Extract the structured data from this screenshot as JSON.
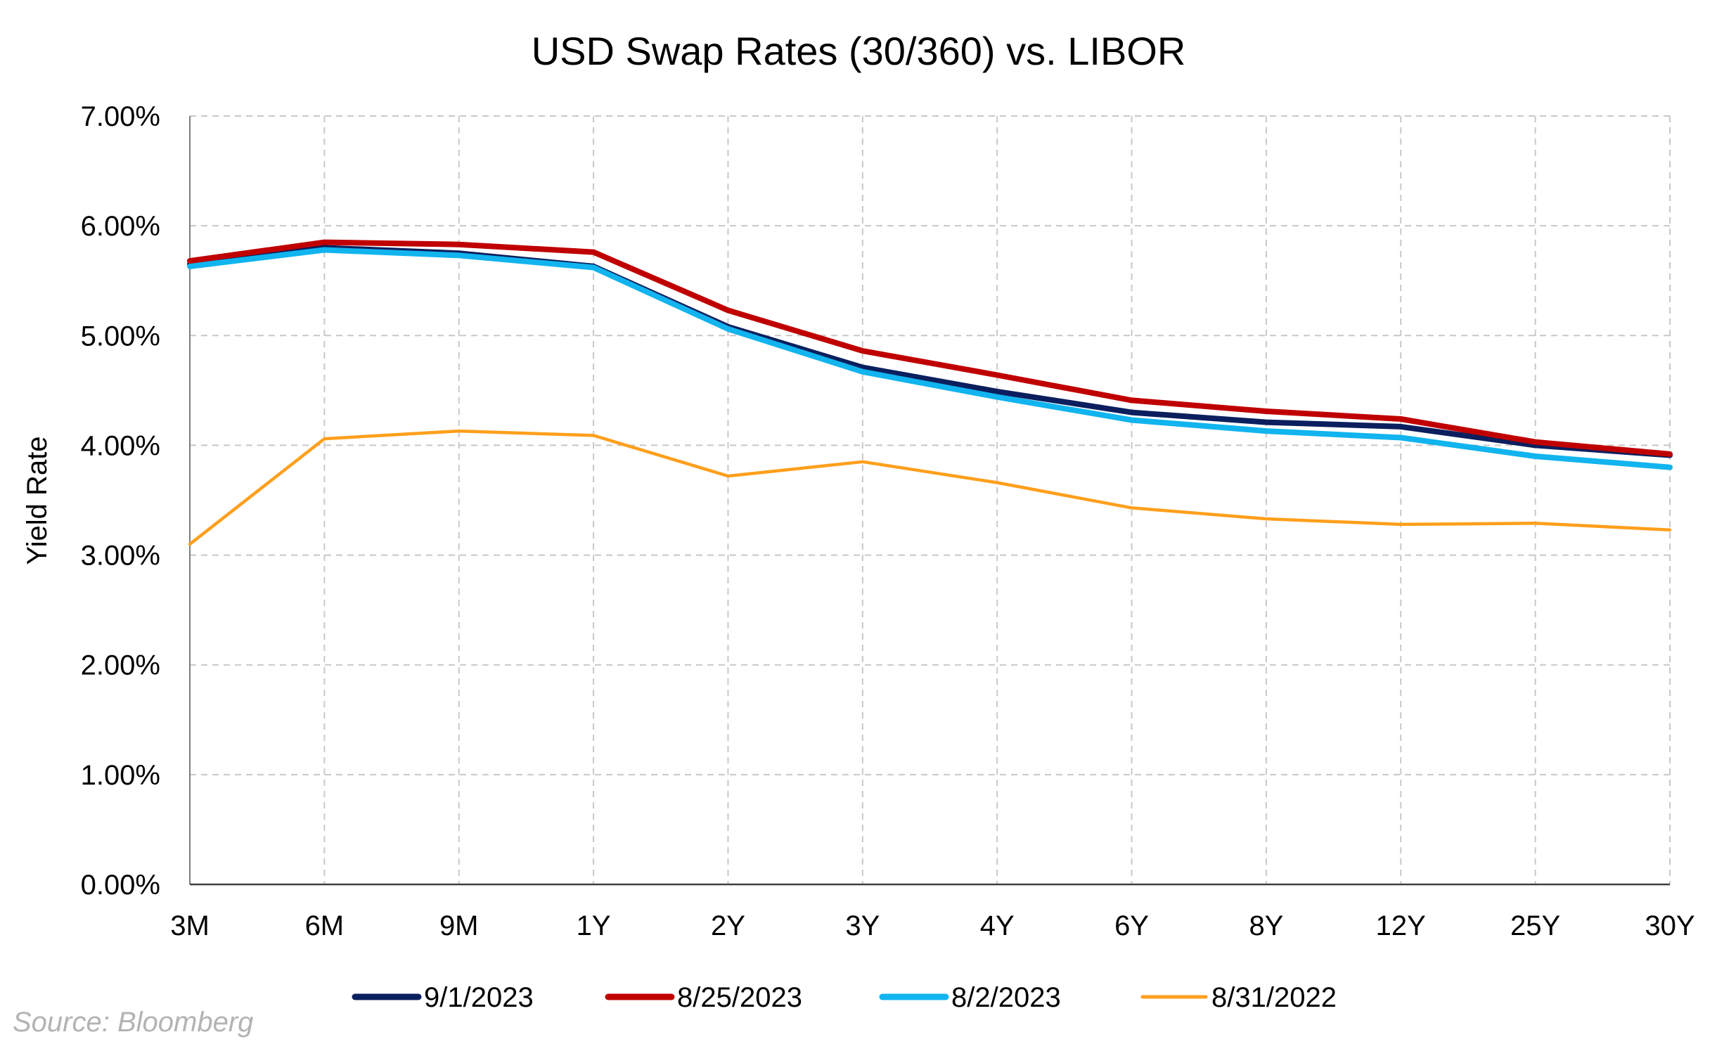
{
  "chart_data": {
    "type": "line",
    "title": "USD Swap Rates (30/360) vs. LIBOR",
    "xlabel": "",
    "ylabel": "Yield Rate",
    "categories": [
      "3M",
      "6M",
      "9M",
      "1Y",
      "2Y",
      "3Y",
      "4Y",
      "6Y",
      "8Y",
      "12Y",
      "25Y",
      "30Y"
    ],
    "ylim": [
      0,
      7
    ],
    "yticks": [
      {
        "value": 0,
        "label": "0.00%"
      },
      {
        "value": 1,
        "label": "1.00%"
      },
      {
        "value": 2,
        "label": "2.00%"
      },
      {
        "value": 3,
        "label": "3.00%"
      },
      {
        "value": 4,
        "label": "4.00%"
      },
      {
        "value": 5,
        "label": "5.00%"
      },
      {
        "value": 6,
        "label": "6.00%"
      },
      {
        "value": 7,
        "label": "7.00%"
      }
    ],
    "grid": true,
    "legend_position": "bottom",
    "series": [
      {
        "name": "8/31/2022",
        "color": "#ff9f1c",
        "values": [
          3.1,
          4.06,
          4.13,
          4.09,
          3.72,
          3.85,
          3.66,
          3.43,
          3.33,
          3.28,
          3.29,
          3.23
        ]
      },
      {
        "name": "9/1/2023",
        "color": "#0b1f5e",
        "values": [
          5.65,
          5.8,
          5.75,
          5.63,
          5.08,
          4.71,
          4.49,
          4.3,
          4.21,
          4.17,
          4.0,
          3.91
        ]
      },
      {
        "name": "8/2/2023",
        "color": "#11b4ee",
        "values": [
          5.63,
          5.78,
          5.73,
          5.62,
          5.06,
          4.67,
          4.44,
          4.23,
          4.13,
          4.07,
          3.9,
          3.8
        ]
      },
      {
        "name": "8/25/2023",
        "color": "#c00000",
        "values": [
          5.68,
          5.85,
          5.83,
          5.76,
          5.23,
          4.86,
          4.64,
          4.41,
          4.31,
          4.24,
          4.03,
          3.92
        ]
      }
    ],
    "legend_order": [
      "9/1/2023",
      "8/25/2023",
      "8/2/2023",
      "8/31/2022"
    ]
  },
  "source_note": "Source: Bloomberg"
}
